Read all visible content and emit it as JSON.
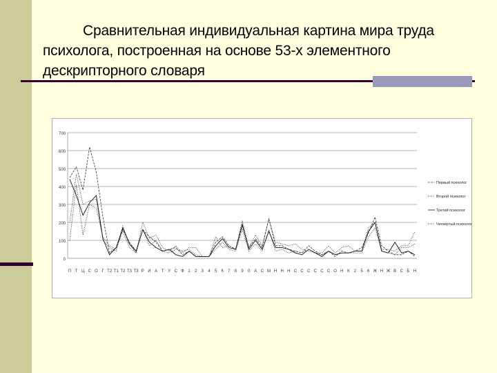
{
  "slide": {
    "title": "Сравнительная индивидуальная картина мира труда психолога, построенная на основе 53-х элементного дескрипторного словаря"
  },
  "colors": {
    "background": "#ffffe0",
    "left_bar": "#cccc99",
    "rule": "#330033",
    "rule_block": "#9999bb"
  },
  "chart_data": {
    "type": "line",
    "ylim": [
      0,
      700
    ],
    "yticks": [
      0,
      100,
      200,
      300,
      400,
      500,
      600,
      700
    ],
    "grid": true,
    "legend_position": "right",
    "x_count": 53,
    "categories": [
      "П",
      "Т",
      "Ц",
      "С",
      "О",
      "Г",
      "Т2",
      "Т1",
      "Т2",
      "Т3",
      "Т3",
      "Р",
      "И",
      "А",
      "Т",
      "У",
      "С",
      "Ф",
      "1",
      "2",
      "3",
      "4",
      "5",
      "6",
      "7",
      "8",
      "9",
      "0",
      "А",
      "С",
      "М",
      "Н",
      "Н",
      "Н",
      "С",
      "С",
      "С",
      "С",
      "С",
      "С",
      "О",
      "Н",
      "К",
      "2",
      "5",
      "6",
      "Ж",
      "Н",
      "Ж",
      "В",
      "С",
      "Б",
      "Н"
    ],
    "series": [
      {
        "name": "Первый психолог",
        "style": "dashed",
        "values": [
          450,
          510,
          380,
          620,
          480,
          230,
          30,
          60,
          160,
          90,
          40,
          160,
          120,
          90,
          40,
          50,
          60,
          20,
          40,
          10,
          10,
          10,
          90,
          120,
          70,
          50,
          180,
          60,
          110,
          60,
          220,
          70,
          70,
          50,
          40,
          30,
          70,
          40,
          20,
          40,
          10,
          40,
          30,
          40,
          60,
          140,
          230,
          70,
          40,
          20,
          20,
          40,
          10
        ]
      },
      {
        "name": "Второй психолог",
        "style": "dotted",
        "values": [
          200,
          470,
          300,
          320,
          330,
          100,
          60,
          40,
          180,
          80,
          30,
          200,
          110,
          130,
          60,
          40,
          70,
          30,
          60,
          60,
          10,
          10,
          120,
          60,
          70,
          50,
          210,
          60,
          130,
          70,
          220,
          90,
          80,
          70,
          80,
          50,
          40,
          30,
          30,
          70,
          30,
          60,
          70,
          40,
          40,
          170,
          200,
          50,
          50,
          40,
          70,
          70,
          150
        ]
      },
      {
        "name": "Третий психолог",
        "style": "solid",
        "values": [
          440,
          350,
          240,
          310,
          350,
          110,
          20,
          60,
          170,
          80,
          40,
          160,
          90,
          60,
          40,
          50,
          20,
          10,
          40,
          10,
          10,
          10,
          70,
          110,
          60,
          50,
          190,
          50,
          100,
          50,
          150,
          60,
          60,
          50,
          30,
          20,
          50,
          30,
          10,
          40,
          20,
          30,
          30,
          40,
          40,
          150,
          200,
          40,
          30,
          90,
          30,
          40,
          20
        ]
      },
      {
        "name": "Четвёртый психолог",
        "style": "dotted",
        "values": [
          100,
          410,
          130,
          300,
          280,
          120,
          70,
          50,
          150,
          60,
          30,
          160,
          70,
          100,
          40,
          30,
          50,
          40,
          50,
          20,
          10,
          10,
          50,
          90,
          50,
          40,
          160,
          40,
          80,
          40,
          160,
          40,
          50,
          30,
          40,
          30,
          50,
          30,
          20,
          40,
          20,
          30,
          30,
          30,
          30,
          120,
          170,
          40,
          30,
          20,
          60,
          60,
          80
        ]
      }
    ]
  }
}
